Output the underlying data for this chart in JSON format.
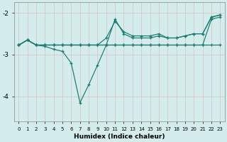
{
  "xlabel": "Humidex (Indice chaleur)",
  "bg_color": "#d4ecec",
  "grid_color": "#c0d8d8",
  "line_color": "#1a7a6e",
  "xlim": [
    -0.5,
    23.5
  ],
  "ylim": [
    -4.6,
    -1.75
  ],
  "yticks": [
    -4,
    -3,
    -2
  ],
  "xticks": [
    0,
    1,
    2,
    3,
    4,
    5,
    6,
    7,
    8,
    9,
    10,
    11,
    12,
    13,
    14,
    15,
    16,
    17,
    18,
    19,
    20,
    21,
    22,
    23
  ],
  "line1_x": [
    0,
    1,
    2,
    3,
    4,
    5,
    6,
    7,
    8,
    9,
    10,
    11,
    12,
    13,
    14,
    15,
    16,
    17,
    18,
    19,
    20,
    21,
    22,
    23
  ],
  "line1_y": [
    -2.77,
    -2.65,
    -2.77,
    -2.77,
    -2.77,
    -2.77,
    -2.77,
    -2.77,
    -2.77,
    -2.77,
    -2.77,
    -2.77,
    -2.77,
    -2.77,
    -2.77,
    -2.77,
    -2.77,
    -2.77,
    -2.77,
    -2.77,
    -2.77,
    -2.77,
    -2.77,
    -2.77
  ],
  "line2_x": [
    0,
    1,
    2,
    3,
    4,
    5,
    6,
    7,
    8,
    9,
    10,
    11,
    12,
    13,
    14,
    15,
    16,
    17,
    18,
    19,
    20,
    21,
    22,
    23
  ],
  "line2_y": [
    -2.77,
    -2.65,
    -2.77,
    -2.77,
    -2.77,
    -2.77,
    -2.77,
    -2.77,
    -2.77,
    -2.77,
    -2.77,
    -2.77,
    -2.77,
    -2.77,
    -2.77,
    -2.77,
    -2.77,
    -2.77,
    -2.77,
    -2.77,
    -2.77,
    -2.77,
    -2.15,
    -2.1
  ],
  "line3_x": [
    0,
    1,
    2,
    3,
    4,
    5,
    6,
    7,
    8,
    9,
    10,
    11,
    12,
    13,
    14,
    15,
    16,
    17,
    18,
    19,
    20,
    21,
    22,
    23
  ],
  "line3_y": [
    -2.77,
    -2.65,
    -2.77,
    -2.77,
    -2.77,
    -2.77,
    -2.77,
    -2.77,
    -2.77,
    -2.77,
    -2.6,
    -2.2,
    -2.45,
    -2.55,
    -2.55,
    -2.55,
    -2.5,
    -2.6,
    -2.6,
    -2.55,
    -2.5,
    -2.5,
    -2.1,
    -2.05
  ],
  "line4_x": [
    0,
    1,
    2,
    3,
    4,
    5,
    6,
    7,
    8,
    9,
    10,
    11,
    12,
    13,
    14,
    15,
    16,
    17,
    18,
    19,
    20,
    21,
    22,
    23
  ],
  "line4_y": [
    -2.77,
    -2.65,
    -2.77,
    -2.8,
    -2.87,
    -2.92,
    -3.2,
    -4.15,
    -3.72,
    -3.25,
    -2.77,
    -2.15,
    -2.5,
    -2.6,
    -2.6,
    -2.6,
    -2.55,
    -2.6,
    -2.6,
    -2.55,
    -2.5,
    -2.5,
    -2.1,
    -2.05
  ]
}
